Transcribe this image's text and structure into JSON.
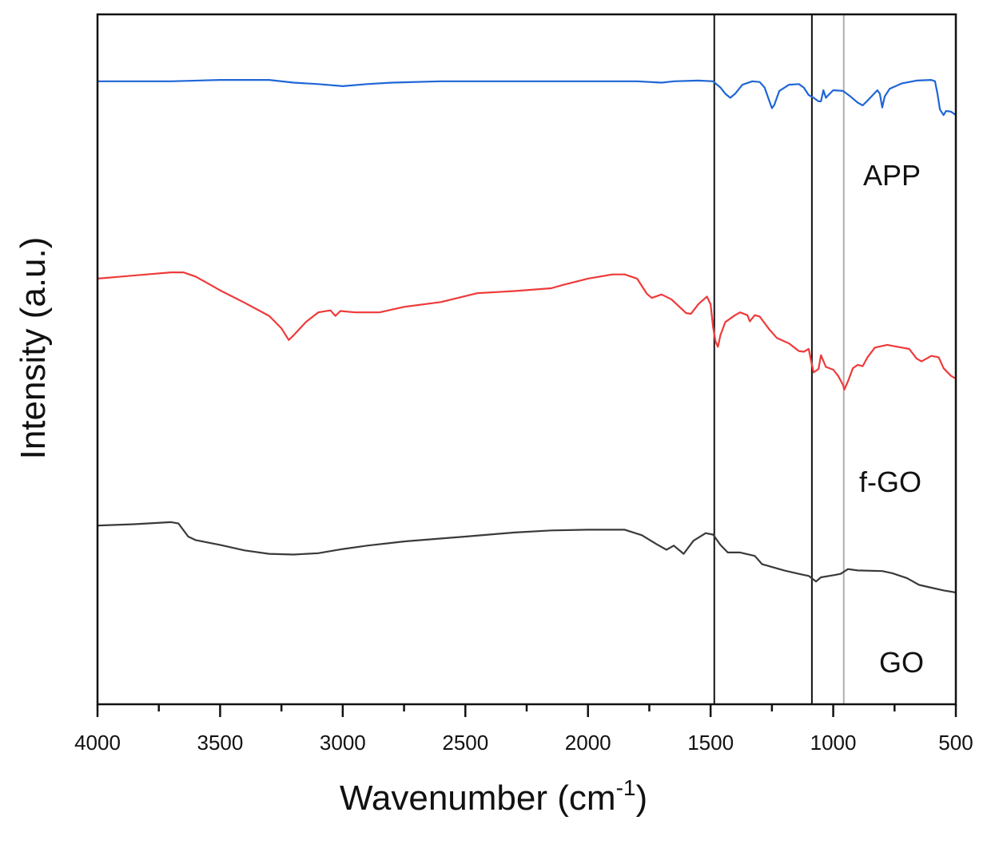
{
  "chart_data": {
    "type": "line",
    "title": "",
    "xlabel": "Wavenumber (cm",
    "xlabel_superscript": "-1",
    "xlabel_suffix": ")",
    "ylabel": "Intensity (a.u.)",
    "xlim": [
      4000,
      500
    ],
    "ylim": [
      0,
      100
    ],
    "x_reversed": true,
    "x_ticks": [
      4000,
      3500,
      3000,
      2500,
      2000,
      1500,
      1000,
      500
    ],
    "x_tick_labels": [
      "4000",
      "3500",
      "3000",
      "2500",
      "2000",
      "1500",
      "1000",
      "500"
    ],
    "y_ticks_shown": false,
    "grid": false,
    "reference_lines": [
      {
        "x": 1485,
        "color": "#111111"
      },
      {
        "x": 1087,
        "color": "#111111"
      },
      {
        "x": 957,
        "color": "#b0b0b0"
      }
    ],
    "series": [
      {
        "name": "APP",
        "color": "#1f66d6",
        "points": [
          [
            4000,
            90.3
          ],
          [
            3700,
            90.3
          ],
          [
            3500,
            90.5
          ],
          [
            3300,
            90.5
          ],
          [
            3200,
            90.1
          ],
          [
            3100,
            89.9
          ],
          [
            3000,
            89.6
          ],
          [
            2900,
            89.9
          ],
          [
            2800,
            90.1
          ],
          [
            2600,
            90.3
          ],
          [
            2400,
            90.3
          ],
          [
            2200,
            90.3
          ],
          [
            2000,
            90.3
          ],
          [
            1800,
            90.3
          ],
          [
            1700,
            90.1
          ],
          [
            1650,
            90.3
          ],
          [
            1550,
            90.4
          ],
          [
            1490,
            90.3
          ],
          [
            1460,
            89.4
          ],
          [
            1440,
            88.5
          ],
          [
            1420,
            87.9
          ],
          [
            1400,
            88.5
          ],
          [
            1370,
            89.8
          ],
          [
            1330,
            90.3
          ],
          [
            1300,
            90.2
          ],
          [
            1280,
            89.4
          ],
          [
            1260,
            87.4
          ],
          [
            1250,
            86.4
          ],
          [
            1240,
            86.9
          ],
          [
            1220,
            88.9
          ],
          [
            1180,
            89.8
          ],
          [
            1140,
            89.9
          ],
          [
            1120,
            89.4
          ],
          [
            1100,
            88.3
          ],
          [
            1080,
            87.9
          ],
          [
            1060,
            87.4
          ],
          [
            1050,
            87.4
          ],
          [
            1040,
            89.0
          ],
          [
            1030,
            87.9
          ],
          [
            1020,
            88.3
          ],
          [
            1000,
            89.0
          ],
          [
            960,
            88.9
          ],
          [
            930,
            88.1
          ],
          [
            900,
            87.2
          ],
          [
            880,
            86.8
          ],
          [
            860,
            87.5
          ],
          [
            820,
            89.0
          ],
          [
            810,
            88.5
          ],
          [
            800,
            86.5
          ],
          [
            790,
            88.1
          ],
          [
            770,
            89.2
          ],
          [
            720,
            90.0
          ],
          [
            660,
            90.4
          ],
          [
            600,
            90.5
          ],
          [
            585,
            90.3
          ],
          [
            575,
            88.5
          ],
          [
            565,
            86.2
          ],
          [
            550,
            85.4
          ],
          [
            540,
            86.0
          ],
          [
            520,
            85.9
          ],
          [
            500,
            85.4
          ]
        ]
      },
      {
        "name": "f-GO",
        "color": "#ee3a3a",
        "points": [
          [
            4000,
            61.7
          ],
          [
            3900,
            62.0
          ],
          [
            3800,
            62.3
          ],
          [
            3700,
            62.6
          ],
          [
            3650,
            62.6
          ],
          [
            3600,
            62.0
          ],
          [
            3500,
            60.0
          ],
          [
            3400,
            58.2
          ],
          [
            3300,
            56.3
          ],
          [
            3250,
            54.5
          ],
          [
            3220,
            52.8
          ],
          [
            3200,
            53.5
          ],
          [
            3150,
            55.4
          ],
          [
            3100,
            56.8
          ],
          [
            3050,
            57.1
          ],
          [
            3030,
            56.3
          ],
          [
            3010,
            57.0
          ],
          [
            2950,
            56.8
          ],
          [
            2850,
            56.8
          ],
          [
            2750,
            57.6
          ],
          [
            2600,
            58.3
          ],
          [
            2450,
            59.6
          ],
          [
            2300,
            59.9
          ],
          [
            2150,
            60.3
          ],
          [
            2100,
            60.8
          ],
          [
            2000,
            61.7
          ],
          [
            1900,
            62.3
          ],
          [
            1850,
            62.3
          ],
          [
            1800,
            61.7
          ],
          [
            1760,
            59.5
          ],
          [
            1740,
            58.9
          ],
          [
            1700,
            59.4
          ],
          [
            1660,
            58.7
          ],
          [
            1600,
            56.7
          ],
          [
            1580,
            56.6
          ],
          [
            1550,
            58.0
          ],
          [
            1515,
            59.1
          ],
          [
            1500,
            58.0
          ],
          [
            1490,
            54.7
          ],
          [
            1480,
            52.6
          ],
          [
            1470,
            51.8
          ],
          [
            1460,
            53.5
          ],
          [
            1440,
            55.4
          ],
          [
            1400,
            56.4
          ],
          [
            1380,
            56.8
          ],
          [
            1350,
            56.4
          ],
          [
            1340,
            55.5
          ],
          [
            1320,
            56.4
          ],
          [
            1300,
            56.2
          ],
          [
            1260,
            54.3
          ],
          [
            1230,
            53.1
          ],
          [
            1180,
            52.3
          ],
          [
            1140,
            51.2
          ],
          [
            1120,
            51.1
          ],
          [
            1100,
            51.5
          ],
          [
            1090,
            49.7
          ],
          [
            1080,
            48.1
          ],
          [
            1060,
            48.6
          ],
          [
            1050,
            50.6
          ],
          [
            1030,
            48.9
          ],
          [
            1000,
            48.5
          ],
          [
            980,
            47.6
          ],
          [
            960,
            46.3
          ],
          [
            955,
            45.6
          ],
          [
            940,
            46.8
          ],
          [
            920,
            48.7
          ],
          [
            900,
            49.2
          ],
          [
            880,
            49.0
          ],
          [
            860,
            50.3
          ],
          [
            830,
            51.7
          ],
          [
            780,
            52.1
          ],
          [
            720,
            51.7
          ],
          [
            690,
            51.5
          ],
          [
            660,
            50.1
          ],
          [
            640,
            49.7
          ],
          [
            600,
            50.5
          ],
          [
            570,
            50.3
          ],
          [
            550,
            48.7
          ],
          [
            520,
            47.6
          ],
          [
            500,
            47.2
          ]
        ]
      },
      {
        "name": "GO",
        "color": "#3a3a3a",
        "points": [
          [
            4000,
            25.9
          ],
          [
            3850,
            26.1
          ],
          [
            3700,
            26.4
          ],
          [
            3670,
            26.2
          ],
          [
            3630,
            24.3
          ],
          [
            3600,
            23.8
          ],
          [
            3500,
            23.1
          ],
          [
            3400,
            22.3
          ],
          [
            3300,
            21.8
          ],
          [
            3200,
            21.7
          ],
          [
            3100,
            21.9
          ],
          [
            3000,
            22.5
          ],
          [
            2900,
            23.0
          ],
          [
            2750,
            23.6
          ],
          [
            2500,
            24.3
          ],
          [
            2300,
            24.9
          ],
          [
            2150,
            25.2
          ],
          [
            2000,
            25.3
          ],
          [
            1850,
            25.3
          ],
          [
            1780,
            24.5
          ],
          [
            1720,
            23.2
          ],
          [
            1680,
            22.4
          ],
          [
            1650,
            23.0
          ],
          [
            1610,
            21.8
          ],
          [
            1570,
            23.7
          ],
          [
            1520,
            24.8
          ],
          [
            1490,
            24.6
          ],
          [
            1460,
            23.1
          ],
          [
            1430,
            22.0
          ],
          [
            1380,
            22.0
          ],
          [
            1320,
            21.5
          ],
          [
            1290,
            20.3
          ],
          [
            1250,
            19.9
          ],
          [
            1200,
            19.4
          ],
          [
            1140,
            18.9
          ],
          [
            1100,
            18.6
          ],
          [
            1070,
            17.8
          ],
          [
            1050,
            18.4
          ],
          [
            1000,
            18.7
          ],
          [
            970,
            18.9
          ],
          [
            940,
            19.6
          ],
          [
            900,
            19.4
          ],
          [
            800,
            19.3
          ],
          [
            760,
            19.0
          ],
          [
            700,
            18.3
          ],
          [
            650,
            17.3
          ],
          [
            600,
            16.9
          ],
          [
            550,
            16.5
          ],
          [
            500,
            16.2
          ]
        ]
      }
    ],
    "annotations": [
      {
        "text": "APP",
        "series": "APP"
      },
      {
        "text": "f-GO",
        "series": "f-GO"
      },
      {
        "text": "GO",
        "series": "GO"
      }
    ]
  }
}
